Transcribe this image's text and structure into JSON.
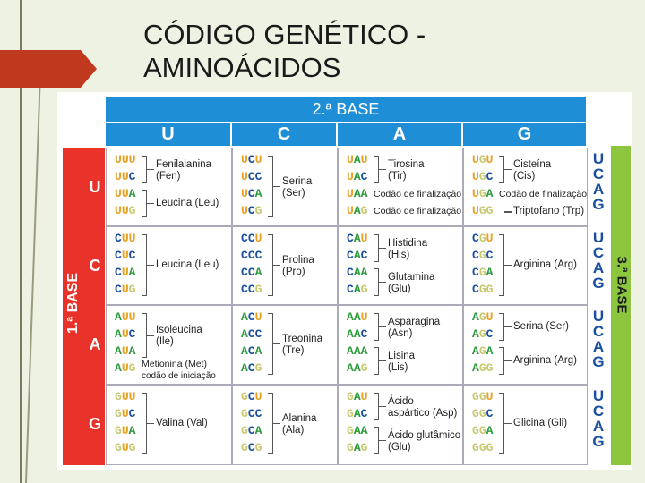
{
  "title_line1": "CÓDIGO GENÉTICO -",
  "title_line2": "AMINOÁCIDOS",
  "second_base_label": "2.ª BASE",
  "first_base_label": "1.ª BASE",
  "third_base_label": "3.ª BASE",
  "bases": [
    "U",
    "C",
    "A",
    "G"
  ],
  "colors": {
    "U": "#e8a020",
    "C": "#1a4fa0",
    "A": "#2a9a3a",
    "G": "#c8c870",
    "header": "#1e8fd6",
    "first": "#e8322a",
    "third": "#8cc63f"
  },
  "cells": [
    {
      "codons": [
        "UUU",
        "UUC",
        "UUA",
        "UUG"
      ],
      "labels": [
        {
          "text": "Fenilalanina",
          "sub": "(Fen)",
          "rows": [
            0,
            1
          ]
        },
        {
          "text": "Leucina (Leu)",
          "rows": [
            2,
            3
          ]
        }
      ]
    },
    {
      "codons": [
        "UCU",
        "UCC",
        "UCA",
        "UCG"
      ],
      "labels": [
        {
          "text": "Serina",
          "sub": "(Ser)",
          "rows": [
            0,
            3
          ]
        }
      ]
    },
    {
      "codons": [
        "UAU",
        "UAC",
        "UAA",
        "UAG"
      ],
      "labels": [
        {
          "text": "Tirosina",
          "sub": "(Tir)",
          "rows": [
            0,
            1
          ]
        },
        {
          "text": "Codão de finalização",
          "rows": [
            2
          ],
          "plain": true
        },
        {
          "text": "Codão de finalização",
          "rows": [
            3
          ],
          "plain": true
        }
      ]
    },
    {
      "codons": [
        "UGU",
        "UGC",
        "UGA",
        "UGG"
      ],
      "labels": [
        {
          "text": "Cisteína",
          "sub": "(Cis)",
          "rows": [
            0,
            1
          ]
        },
        {
          "text": "Codão de finalização",
          "rows": [
            2
          ],
          "plain": true
        },
        {
          "text": "Triptofano (Trp)",
          "rows": [
            3
          ],
          "single": true
        }
      ]
    },
    {
      "codons": [
        "CUU",
        "CUC",
        "CUA",
        "CUG"
      ],
      "labels": [
        {
          "text": "Leucina (Leu)",
          "rows": [
            0,
            3
          ]
        }
      ]
    },
    {
      "codons": [
        "CCU",
        "CCC",
        "CCA",
        "CCG"
      ],
      "labels": [
        {
          "text": "Prolina",
          "sub": "(Pro)",
          "rows": [
            0,
            3
          ]
        }
      ]
    },
    {
      "codons": [
        "CAU",
        "CAC",
        "CAA",
        "CAG"
      ],
      "labels": [
        {
          "text": "Histidina",
          "sub": "(His)",
          "rows": [
            0,
            1
          ]
        },
        {
          "text": "Glutamina",
          "sub": "(Glu)",
          "rows": [
            2,
            3
          ]
        }
      ]
    },
    {
      "codons": [
        "CGU",
        "CGC",
        "CGA",
        "CGG"
      ],
      "labels": [
        {
          "text": "Arginina (Arg)",
          "rows": [
            0,
            3
          ]
        }
      ]
    },
    {
      "codons": [
        "AUU",
        "AUC",
        "AUA",
        "AUG"
      ],
      "labels": [
        {
          "text": "Isoleucina",
          "sub": "(Ile)",
          "rows": [
            0,
            2
          ]
        },
        {
          "text": "Metionina (Met)",
          "sub": "codão de iniciação",
          "rows": [
            3
          ],
          "plain": true
        }
      ]
    },
    {
      "codons": [
        "ACU",
        "ACC",
        "ACA",
        "ACG"
      ],
      "labels": [
        {
          "text": "Treonina",
          "sub": "(Tre)",
          "rows": [
            0,
            3
          ]
        }
      ]
    },
    {
      "codons": [
        "AAU",
        "AAC",
        "AAA",
        "AAG"
      ],
      "labels": [
        {
          "text": "Asparagina",
          "sub": "(Asn)",
          "rows": [
            0,
            1
          ]
        },
        {
          "text": "Lisina",
          "sub": "(Lis)",
          "rows": [
            2,
            3
          ]
        }
      ]
    },
    {
      "codons": [
        "AGU",
        "AGC",
        "AGA",
        "AGG"
      ],
      "labels": [
        {
          "text": "Serina (Ser)",
          "rows": [
            0,
            1
          ]
        },
        {
          "text": "Arginina (Arg)",
          "rows": [
            2,
            3
          ]
        }
      ]
    },
    {
      "codons": [
        "GUU",
        "GUC",
        "GUA",
        "GUG"
      ],
      "labels": [
        {
          "text": "Valina (Val)",
          "rows": [
            0,
            3
          ]
        }
      ]
    },
    {
      "codons": [
        "GCU",
        "GCC",
        "GCA",
        "GCG"
      ],
      "labels": [
        {
          "text": "Alanina",
          "sub": "(Ala)",
          "rows": [
            0,
            3
          ]
        }
      ]
    },
    {
      "codons": [
        "GAU",
        "GAC",
        "GAA",
        "GAG"
      ],
      "labels": [
        {
          "text": "Ácido",
          "sub": "aspártico (Asp)",
          "rows": [
            0,
            1
          ]
        },
        {
          "text": "Ácido glutâmico",
          "sub": "(Glu)",
          "rows": [
            2,
            3
          ]
        }
      ]
    },
    {
      "codons": [
        "GGU",
        "GGC",
        "GGA",
        "GGG"
      ],
      "labels": [
        {
          "text": "Glicina (Gli)",
          "rows": [
            0,
            3
          ]
        }
      ]
    }
  ]
}
